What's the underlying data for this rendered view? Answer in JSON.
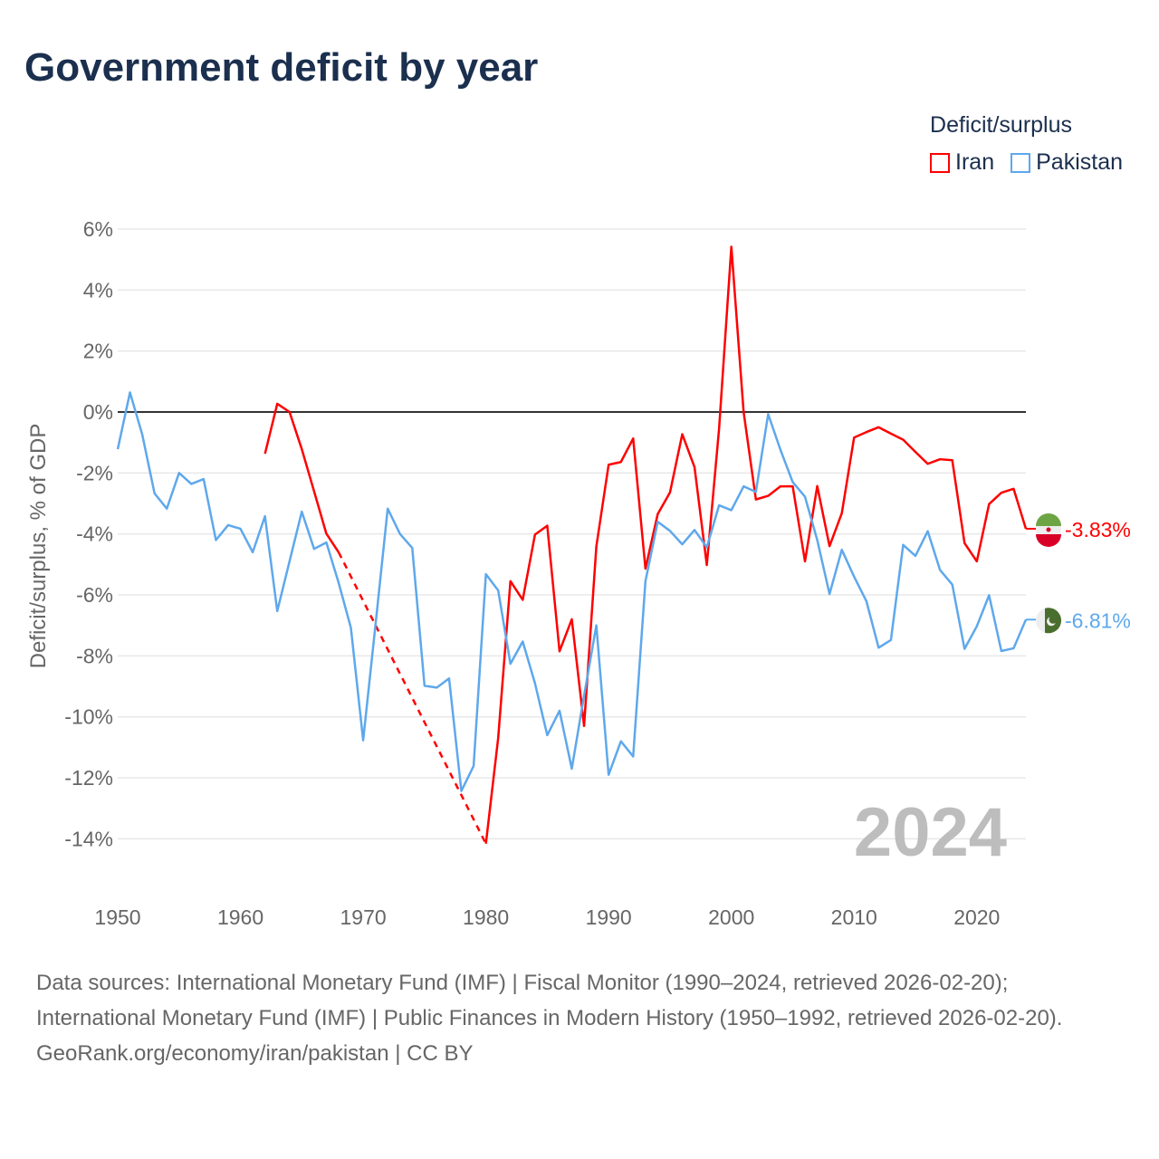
{
  "title": "Government deficit by year",
  "legend": {
    "title": "Deficit/surplus"
  },
  "watermark_year": "2024",
  "footer": {
    "sources": "Data sources: International Monetary Fund (IMF) | Fiscal Monitor (1990–2024, retrieved 2026-02-20); International Monetary Fund (IMF) | Public Finances in Modern History (1950–1992, retrieved 2026-02-20).",
    "credit": "GeoRank.org/economy/iran/pakistan | CC BY"
  },
  "chart_data": {
    "type": "line",
    "title": "Government deficit by year",
    "xlabel": "",
    "ylabel": "Deficit/surplus, % of GDP",
    "xlim": [
      1950,
      2024
    ],
    "ylim": [
      -14,
      6
    ],
    "xticks": [
      1950,
      1960,
      1970,
      1980,
      1990,
      2000,
      2010,
      2020
    ],
    "xtick_labels": [
      "1950",
      "1960",
      "1970",
      "1980",
      "1990",
      "2000",
      "2010",
      "2020"
    ],
    "yticks": [
      6,
      4,
      2,
      0,
      -2,
      -4,
      -6,
      -8,
      -10,
      -12,
      -14
    ],
    "ytick_labels": [
      "6%",
      "4%",
      "2%",
      "0%",
      "-2%",
      "-4%",
      "-6%",
      "-8%",
      "-10%",
      "-12%",
      "-14%"
    ],
    "grid": true,
    "legend_position": "top-right",
    "x_start": 1950,
    "series": [
      {
        "name": "Iran",
        "color": "#ff0000",
        "end_label": "-3.83%",
        "flag": "iran-flag",
        "values": [
          null,
          null,
          null,
          null,
          null,
          null,
          null,
          null,
          null,
          null,
          null,
          null,
          -1.37,
          0.27,
          0.0,
          -1.22,
          -2.6,
          -3.99,
          -4.6,
          null,
          null,
          null,
          null,
          null,
          null,
          null,
          null,
          null,
          null,
          null,
          -14.16,
          -10.7,
          -5.55,
          -6.16,
          -4.02,
          -3.73,
          -7.85,
          -6.8,
          -10.3,
          -4.41,
          -1.73,
          -1.64,
          -0.87,
          -5.14,
          -3.35,
          -2.64,
          -0.73,
          -1.81,
          -5.02,
          -0.55,
          5.42,
          0.0,
          -2.87,
          -2.75,
          -2.44,
          -2.44,
          -4.9,
          -2.43,
          -4.4,
          -3.32,
          -0.84,
          -0.66,
          -0.5,
          -0.71,
          -0.91,
          -1.31,
          -1.7,
          -1.55,
          -1.58,
          -4.3,
          -4.9,
          -3.02,
          -2.65,
          -2.52,
          -3.83
        ]
      },
      {
        "name": "Pakistan",
        "color": "#5ea8ec",
        "end_label": "-6.81%",
        "flag": "pakistan-flag",
        "values": [
          -1.22,
          0.64,
          -0.74,
          -2.67,
          -3.17,
          -2.0,
          -2.36,
          -2.2,
          -4.2,
          -3.71,
          -3.83,
          -4.6,
          -3.42,
          -6.53,
          -4.9,
          -3.27,
          -4.49,
          -4.28,
          -5.6,
          -7.08,
          -10.77,
          -7.0,
          -3.17,
          -4.0,
          -4.46,
          -8.98,
          -9.04,
          -8.74,
          -12.43,
          -11.61,
          -5.32,
          -5.85,
          -8.26,
          -7.53,
          -8.9,
          -10.6,
          -9.8,
          -11.7,
          -9.3,
          -7.0,
          -11.9,
          -10.8,
          -11.3,
          -5.55,
          -3.6,
          -3.9,
          -4.34,
          -3.87,
          -4.44,
          -3.06,
          -3.22,
          -2.44,
          -2.62,
          -0.07,
          -1.24,
          -2.3,
          -2.78,
          -4.2,
          -5.97,
          -4.52,
          -5.4,
          -6.2,
          -7.73,
          -7.48,
          -4.36,
          -4.72,
          -3.91,
          -5.18,
          -5.66,
          -7.77,
          -7.03,
          -6.01,
          -7.84,
          -7.75,
          -6.81
        ]
      }
    ]
  }
}
